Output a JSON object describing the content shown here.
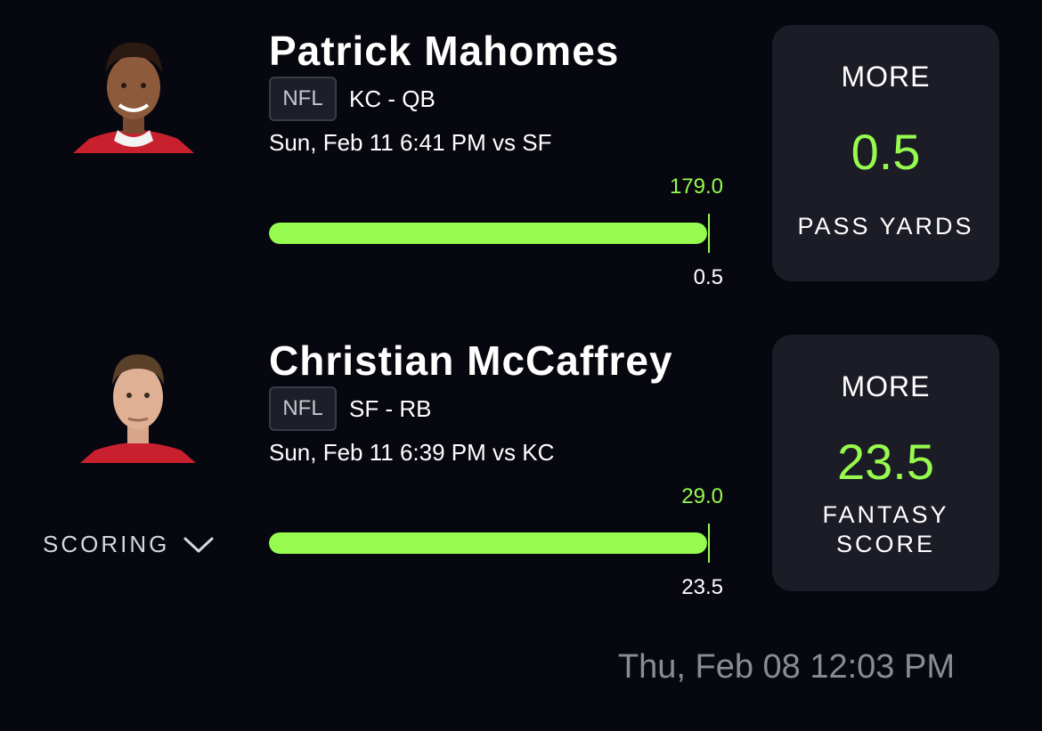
{
  "picks": [
    {
      "player": "Patrick Mahomes",
      "league": "NFL",
      "team_position": "KC - QB",
      "game_time": "Sun, Feb 11 6:41 PM  vs SF",
      "actual": "179.0",
      "line_label": "0.5",
      "progress": 1.0,
      "direction": "MORE",
      "line": "0.5",
      "stat_lines": [
        "PASS YARDS"
      ],
      "jersey_color": "#c8202e",
      "avatar_icon": "player-headshot"
    },
    {
      "player": "Christian McCaffrey",
      "league": "NFL",
      "team_position": "SF - RB",
      "game_time": "Sun, Feb 11 6:39 PM  vs KC",
      "actual": "29.0",
      "line_label": "23.5",
      "progress": 1.0,
      "direction": "MORE",
      "line": "23.5",
      "stat_lines": [
        "FANTASY",
        "SCORE"
      ],
      "jersey_color": "#c8202e",
      "avatar_icon": "player-headshot"
    }
  ],
  "scoring_label": "SCORING",
  "scoring_icon": "chevron-down-icon",
  "timestamp": "Thu, Feb 08 12:03 PM",
  "colors": {
    "accent": "#97fa4e",
    "background": "#07070f",
    "card": "#1b1c25",
    "muted": "#8a8b94"
  }
}
